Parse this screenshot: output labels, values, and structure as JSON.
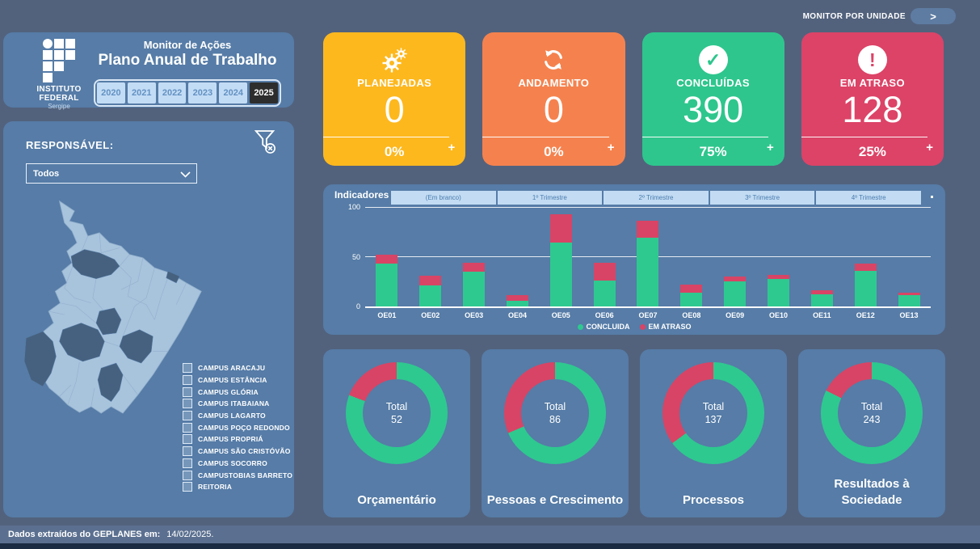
{
  "app": {
    "background": "#52627D",
    "panel_color": "#567CA7"
  },
  "top_bar": {
    "monitor_por_unidade_label": "MONITOR POR UNIDADE",
    "arrow": ">"
  },
  "header": {
    "logo": {
      "org_line1": "INSTITUTO",
      "org_line2": "FEDERAL",
      "region": "Sergipe"
    },
    "title_line1": "Monitor de Ações",
    "title_line2": "Plano Anual de Trabalho",
    "years": [
      "2020",
      "2021",
      "2022",
      "2023",
      "2024",
      "2025"
    ],
    "active_year": "2025"
  },
  "kpi_cards": [
    {
      "label": "PLANEJADAS",
      "value": "0",
      "percent": "0%",
      "plus": "+",
      "color": "#FDB81E",
      "icon": "gears-icon"
    },
    {
      "label": "ANDAMENTO",
      "value": "0",
      "percent": "0%",
      "plus": "+",
      "color": "#F5824E",
      "icon": "refresh-icon"
    },
    {
      "label": "CONCLUÍDAS",
      "value": "390",
      "percent": "75%",
      "plus": "+",
      "color": "#2EC68D",
      "icon": "check-circle-icon"
    },
    {
      "label": "EM ATRASO",
      "value": "128",
      "percent": "25%",
      "plus": "+",
      "color": "#DC4367",
      "icon": "exclamation-circle-icon"
    }
  ],
  "filters": {
    "responsavel_label": "RESPONSÁVEL:",
    "dropdown_value": "Todos",
    "campuses": [
      "CAMPUS ARACAJU",
      "CAMPUS ESTÂNCIA",
      "CAMPUS GLÓRIA",
      "CAMPUS ITABAIANA",
      "CAMPUS LAGARTO",
      "CAMPUS POÇO REDONDO",
      "CAMPUS PROPRIÁ",
      "CAMPUS SÃO CRISTÓVÃO",
      "CAMPUS SOCORRO",
      "CAMPUSTOBIAS BARRETO",
      "REITORIA"
    ]
  },
  "chart_data": [
    {
      "type": "bar",
      "title": "Indicadores",
      "stacked": true,
      "tabs": [
        "(Em branco)",
        "1º Trimestre",
        "2º Trimestre",
        "3º Trimestre",
        "4º Trimestre"
      ],
      "categories": [
        "OE01",
        "OE02",
        "OE03",
        "OE04",
        "OE05",
        "OE06",
        "OE07",
        "OE08",
        "OE09",
        "OE10",
        "OE11",
        "OE12",
        "OE13"
      ],
      "series": [
        {
          "name": "CONCLUIDA",
          "color": "#2EC98F",
          "values": [
            43,
            21,
            35,
            6,
            64,
            26,
            69,
            14,
            25,
            28,
            12,
            36,
            11
          ]
        },
        {
          "name": "EM ATRASO",
          "color": "#D84465",
          "values": [
            9,
            10,
            9,
            5,
            29,
            18,
            17,
            8,
            5,
            4,
            4,
            7,
            3
          ]
        }
      ],
      "ylim": [
        0,
        100
      ],
      "yticks": [
        0,
        50,
        100
      ],
      "grid": true,
      "legend_position": "bottom"
    },
    {
      "type": "pie",
      "title": "Orçamentário",
      "center_label": "Total",
      "total": 52,
      "slices": [
        {
          "name": "CONCLUIDA",
          "value": 42,
          "color": "#2EC98F"
        },
        {
          "name": "EM ATRASO",
          "value": 10,
          "color": "#D84465"
        }
      ]
    },
    {
      "type": "pie",
      "title": "Pessoas e Crescimento",
      "center_label": "Total",
      "total": 86,
      "slices": [
        {
          "name": "CONCLUIDA",
          "value": 59,
          "color": "#2EC98F"
        },
        {
          "name": "EM ATRASO",
          "value": 27,
          "color": "#D84465"
        }
      ]
    },
    {
      "type": "pie",
      "title": "Processos",
      "center_label": "Total",
      "total": 137,
      "slices": [
        {
          "name": "CONCLUIDA",
          "value": 89,
          "color": "#2EC98F"
        },
        {
          "name": "EM ATRASO",
          "value": 48,
          "color": "#D84465"
        }
      ]
    },
    {
      "type": "pie",
      "title": "Resultados à Sociedade",
      "center_label": "Total",
      "total": 243,
      "slices": [
        {
          "name": "CONCLUIDA",
          "value": 200,
          "color": "#2EC98F"
        },
        {
          "name": "EM ATRASO",
          "value": 43,
          "color": "#D84465"
        }
      ]
    }
  ],
  "footer": {
    "label": "Dados extraídos do GEPLANES em:",
    "date": "14/02/2025."
  }
}
